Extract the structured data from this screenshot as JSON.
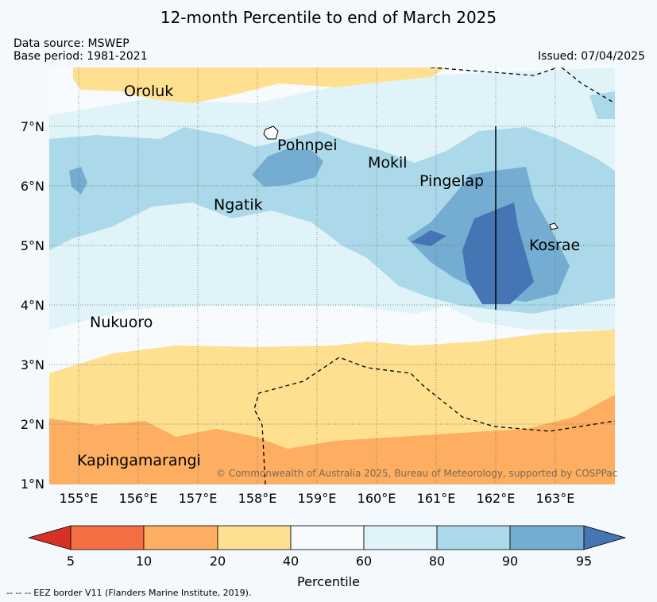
{
  "title": "12-month Percentile to end of March 2025",
  "data_source": "Data source: MSWEP",
  "base_period": "Base period: 1981-2021",
  "issued": "Issued: 07/04/2025",
  "copyright": "© Commonwealth of Australia 2025, Bureau of Meteorology, supported by COSPPac",
  "eez_note": "--  --  -- EEZ border V11 (Flanders Marine Institute, 2019).",
  "lat_labels": [
    "7°N",
    "6°N",
    "5°N",
    "4°N",
    "3°N",
    "2°N",
    "1°N"
  ],
  "lon_labels": [
    "155°E",
    "156°E",
    "157°E",
    "158°E",
    "159°E",
    "160°E",
    "161°E",
    "162°E",
    "163°E"
  ],
  "places": {
    "oroluk": "Oroluk",
    "pohnpei": "Pohnpei",
    "mokil": "Mokil",
    "pingelap": "Pingelap",
    "ngatik": "Ngatik",
    "kosrae": "Kosrae",
    "nukuoro": "Nukuoro",
    "kapingamarangi": "Kapingamarangi"
  },
  "colorbar": {
    "title": "Percentile",
    "tick_labels": [
      "5",
      "10",
      "20",
      "40",
      "60",
      "80",
      "90",
      "95"
    ],
    "colors": {
      "below5": "#d73027",
      "p5_10": "#f46d43",
      "p10_20": "#fdae61",
      "p20_40": "#fee090",
      "p40_60": "#f7fbfd",
      "p60_80": "#e0f3f8",
      "p80_90": "#abd9e9",
      "p90_95": "#74add1",
      "above95": "#4575b4"
    }
  }
}
